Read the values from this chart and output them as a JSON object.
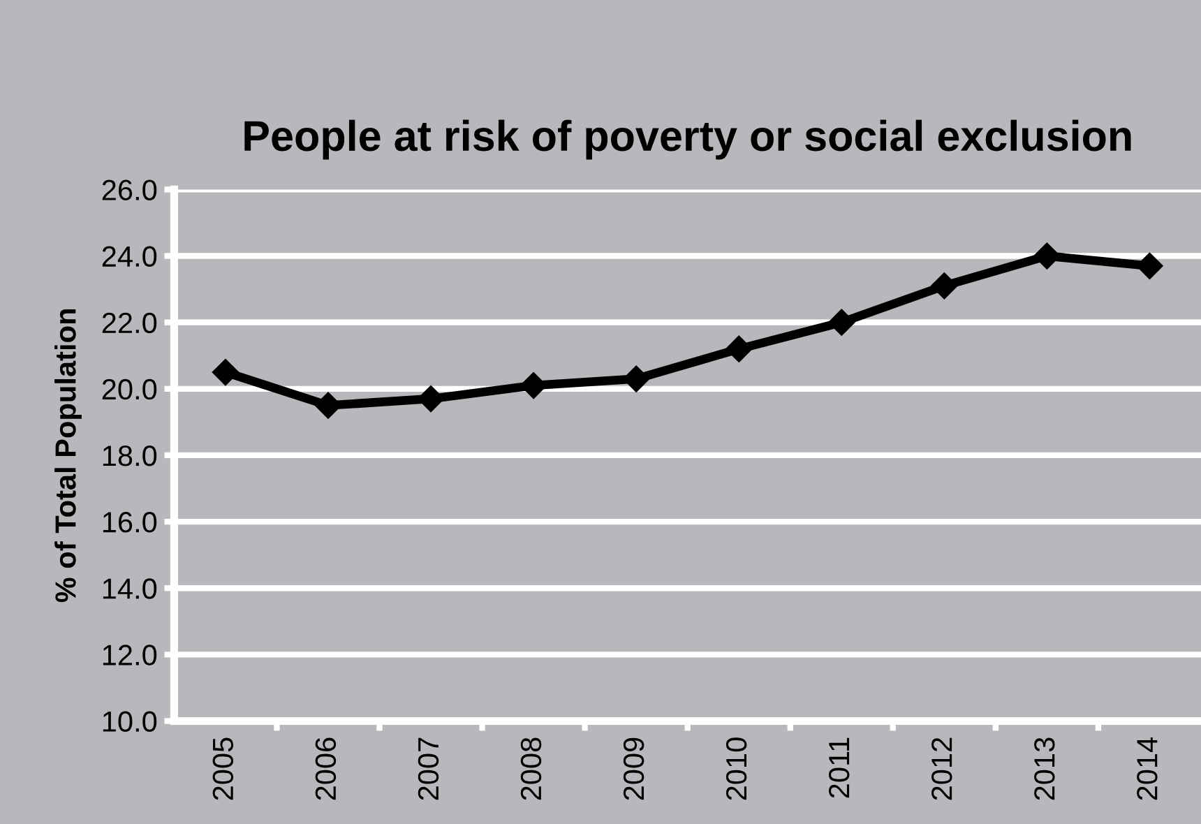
{
  "chart_data": {
    "type": "line",
    "title": "People at risk of poverty or social exclusion",
    "ylabel": "% of Total Population",
    "categories": [
      "2005",
      "2006",
      "2007",
      "2008",
      "2009",
      "2010",
      "2011",
      "2012",
      "2013",
      "2014"
    ],
    "series": [
      {
        "color": "#000000",
        "values": [
          20.5,
          19.5,
          19.7,
          20.1,
          20.3,
          21.2,
          22.0,
          23.1,
          24.0,
          23.7
        ]
      }
    ],
    "ylim": [
      10.0,
      26.0
    ],
    "yticks": [
      {
        "value": 10,
        "label": "10.0"
      },
      {
        "value": 12,
        "label": "12.0"
      },
      {
        "value": 14,
        "label": "14.0"
      },
      {
        "value": 16,
        "label": "16.0"
      },
      {
        "value": 18,
        "label": "18.0"
      },
      {
        "value": 20,
        "label": "20.0"
      },
      {
        "value": 22,
        "label": "22.0"
      },
      {
        "value": 24,
        "label": "24.0"
      },
      {
        "value": 26,
        "label": "26.0"
      }
    ],
    "grid": "y",
    "marker": "diamond",
    "line_style": "solid"
  }
}
